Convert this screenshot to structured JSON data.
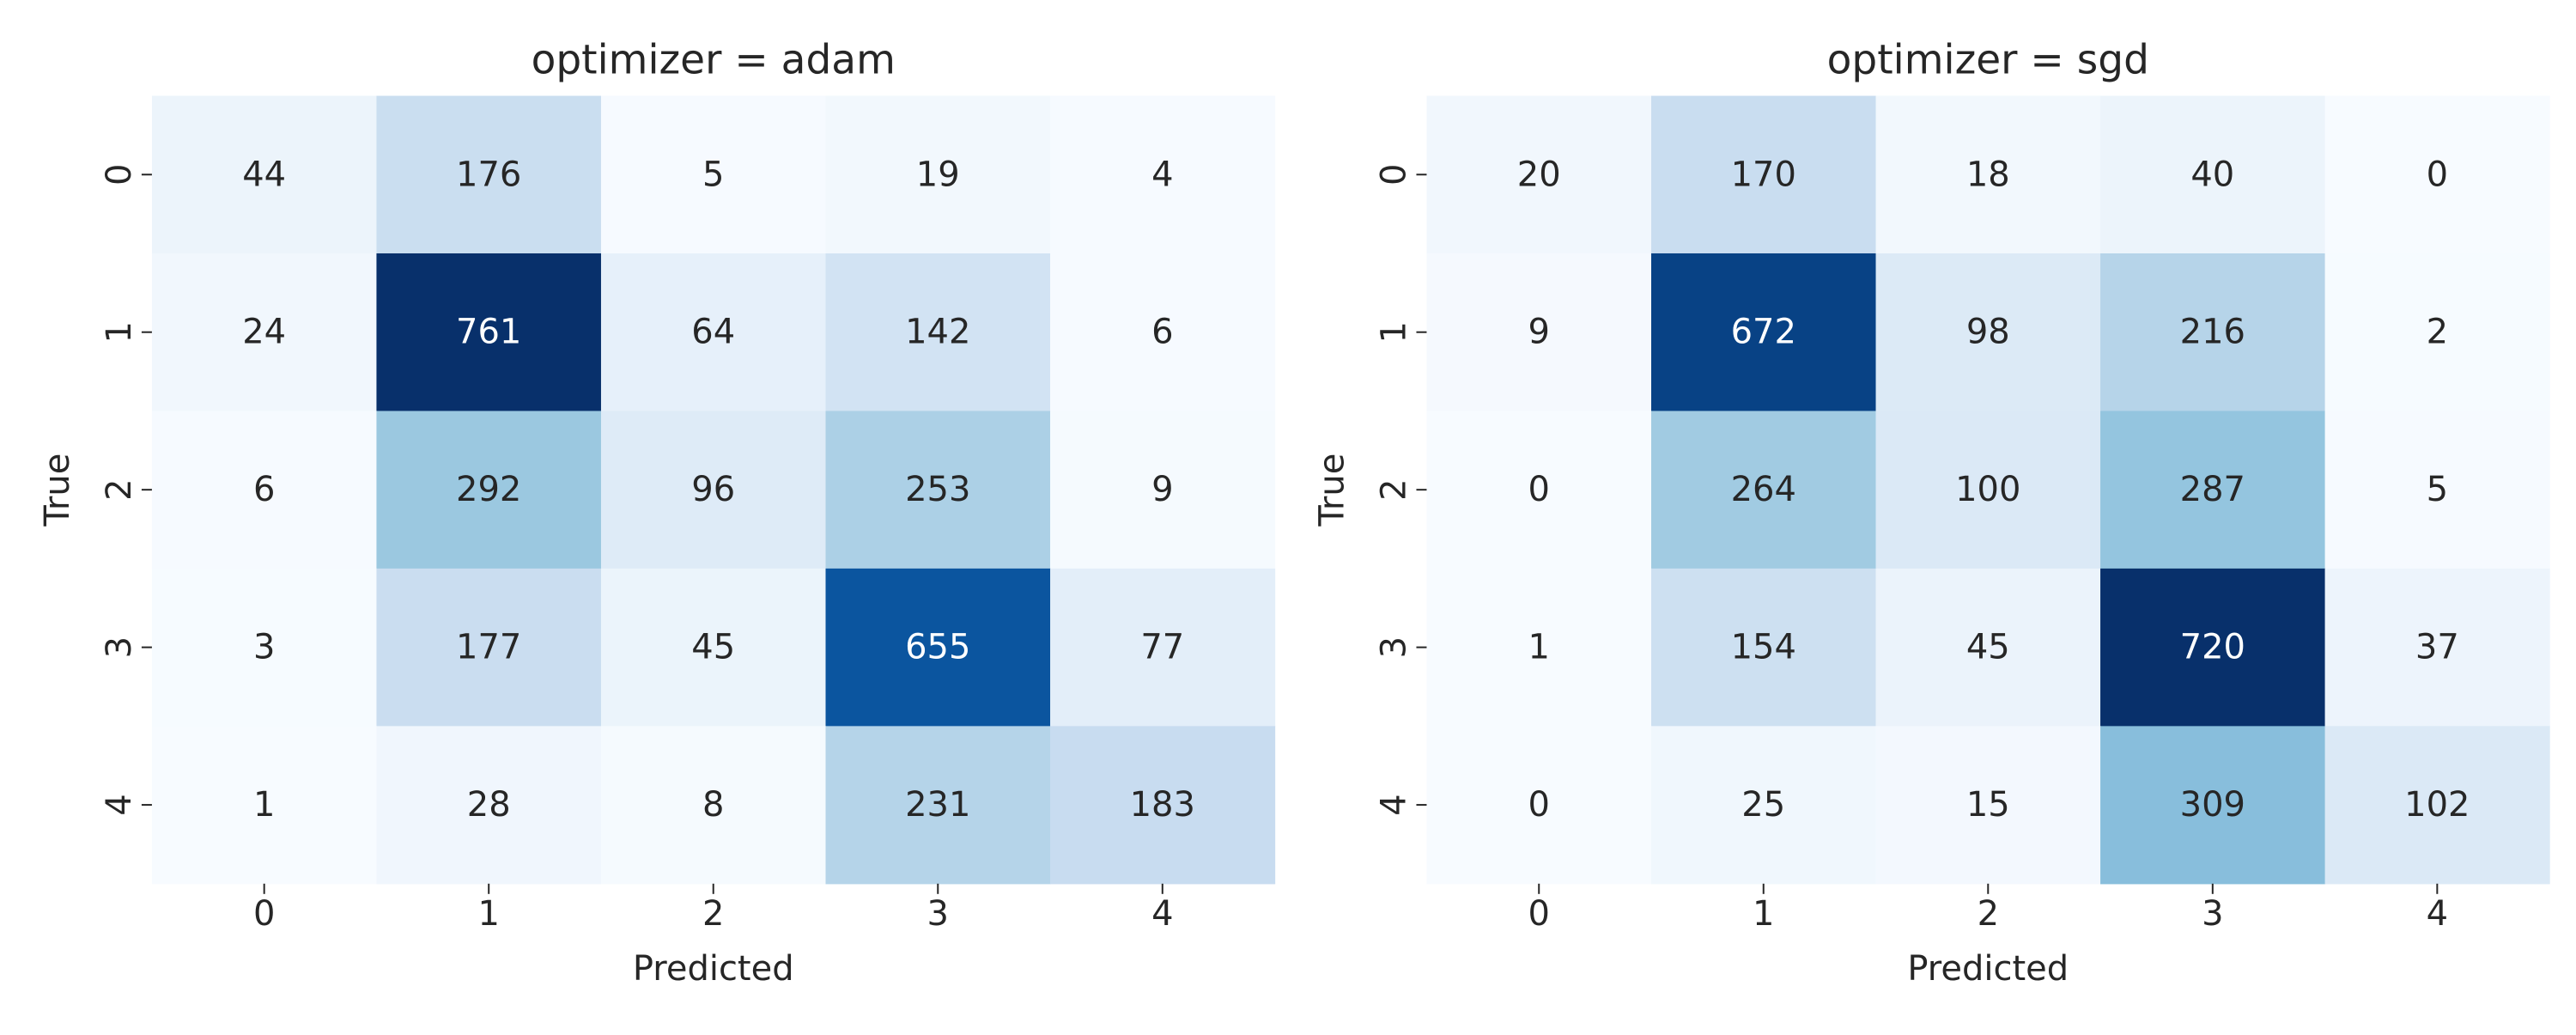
{
  "chart_data": [
    {
      "type": "heatmap",
      "title": "optimizer = adam",
      "xlabel": "Predicted",
      "ylabel": "True",
      "x_categories": [
        "0",
        "1",
        "2",
        "3",
        "4"
      ],
      "y_categories": [
        "0",
        "1",
        "2",
        "3",
        "4"
      ],
      "values": [
        [
          44,
          176,
          5,
          19,
          4
        ],
        [
          24,
          761,
          64,
          142,
          6
        ],
        [
          6,
          292,
          96,
          253,
          9
        ],
        [
          3,
          177,
          45,
          655,
          77
        ],
        [
          1,
          28,
          8,
          231,
          183
        ]
      ],
      "colormap": "Blues",
      "colorbar": false,
      "annotated": true
    },
    {
      "type": "heatmap",
      "title": "optimizer = sgd",
      "xlabel": "Predicted",
      "ylabel": "True",
      "x_categories": [
        "0",
        "1",
        "2",
        "3",
        "4"
      ],
      "y_categories": [
        "0",
        "1",
        "2",
        "3",
        "4"
      ],
      "values": [
        [
          20,
          170,
          18,
          40,
          0
        ],
        [
          9,
          672,
          98,
          216,
          2
        ],
        [
          0,
          264,
          100,
          287,
          5
        ],
        [
          1,
          154,
          45,
          720,
          37
        ],
        [
          0,
          25,
          15,
          309,
          102
        ]
      ],
      "colormap": "Blues",
      "colorbar": false,
      "annotated": true
    }
  ]
}
